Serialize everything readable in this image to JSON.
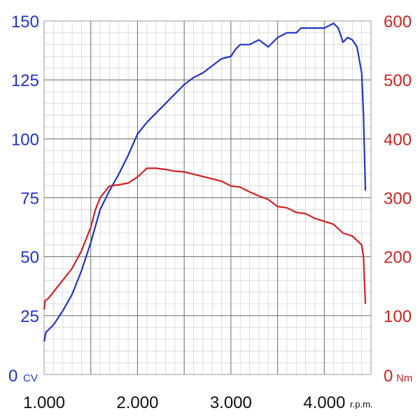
{
  "chart_data": {
    "type": "line",
    "title": "",
    "xlabel": "",
    "x_unit": "r.p.m.",
    "x_ticks": [
      1000,
      2000,
      3000,
      4000
    ],
    "x_tick_labels": [
      "1.000",
      "2.000",
      "3.000",
      "4.000"
    ],
    "xlim": [
      1000,
      4500
    ],
    "y_left": {
      "unit": "CV",
      "lim": [
        0,
        150
      ],
      "ticks": [
        0,
        25,
        50,
        75,
        100,
        125,
        150
      ],
      "tick_labels": [
        "0",
        "25",
        "50",
        "75",
        "100",
        "125",
        "150"
      ],
      "color": "#2233cc"
    },
    "y_right": {
      "unit": "Nm",
      "lim": [
        0,
        600
      ],
      "ticks": [
        0,
        100,
        200,
        300,
        400,
        500,
        600
      ],
      "tick_labels": [
        "0",
        "100",
        "200",
        "300",
        "400",
        "500",
        "600"
      ],
      "color": "#d42020"
    },
    "grid": true,
    "series": [
      {
        "axis": "left",
        "color": "#2233cc",
        "points": [
          [
            1000,
            14
          ],
          [
            1020,
            18
          ],
          [
            1100,
            21
          ],
          [
            1200,
            27
          ],
          [
            1300,
            34
          ],
          [
            1400,
            44
          ],
          [
            1500,
            56
          ],
          [
            1600,
            70
          ],
          [
            1700,
            78
          ],
          [
            1800,
            85
          ],
          [
            1900,
            93
          ],
          [
            2000,
            102
          ],
          [
            2100,
            107
          ],
          [
            2200,
            111
          ],
          [
            2300,
            115
          ],
          [
            2400,
            119
          ],
          [
            2500,
            123
          ],
          [
            2600,
            126
          ],
          [
            2700,
            128
          ],
          [
            2800,
            131
          ],
          [
            2900,
            134
          ],
          [
            3000,
            135
          ],
          [
            3050,
            138
          ],
          [
            3100,
            140
          ],
          [
            3200,
            140
          ],
          [
            3300,
            142
          ],
          [
            3400,
            139
          ],
          [
            3500,
            143
          ],
          [
            3600,
            145
          ],
          [
            3700,
            145
          ],
          [
            3750,
            147
          ],
          [
            3800,
            147
          ],
          [
            3900,
            147
          ],
          [
            4000,
            147
          ],
          [
            4100,
            149
          ],
          [
            4150,
            147
          ],
          [
            4200,
            141
          ],
          [
            4250,
            143
          ],
          [
            4300,
            142
          ],
          [
            4350,
            139
          ],
          [
            4400,
            128
          ],
          [
            4420,
            110
          ],
          [
            4440,
            78
          ]
        ]
      },
      {
        "axis": "right",
        "color": "#d42020",
        "points": [
          [
            1000,
            110
          ],
          [
            1010,
            125
          ],
          [
            1050,
            130
          ],
          [
            1100,
            140
          ],
          [
            1200,
            160
          ],
          [
            1300,
            180
          ],
          [
            1400,
            210
          ],
          [
            1500,
            250
          ],
          [
            1550,
            280
          ],
          [
            1600,
            300
          ],
          [
            1700,
            320
          ],
          [
            1800,
            322
          ],
          [
            1900,
            325
          ],
          [
            2000,
            335
          ],
          [
            2100,
            350
          ],
          [
            2200,
            350
          ],
          [
            2300,
            348
          ],
          [
            2400,
            345
          ],
          [
            2500,
            344
          ],
          [
            2600,
            340
          ],
          [
            2700,
            336
          ],
          [
            2800,
            332
          ],
          [
            2900,
            328
          ],
          [
            3000,
            320
          ],
          [
            3100,
            318
          ],
          [
            3200,
            310
          ],
          [
            3300,
            303
          ],
          [
            3400,
            297
          ],
          [
            3500,
            285
          ],
          [
            3600,
            283
          ],
          [
            3700,
            275
          ],
          [
            3800,
            273
          ],
          [
            3900,
            265
          ],
          [
            4000,
            260
          ],
          [
            4100,
            255
          ],
          [
            4200,
            240
          ],
          [
            4300,
            235
          ],
          [
            4400,
            220
          ],
          [
            4420,
            200
          ],
          [
            4440,
            120
          ]
        ]
      }
    ]
  }
}
